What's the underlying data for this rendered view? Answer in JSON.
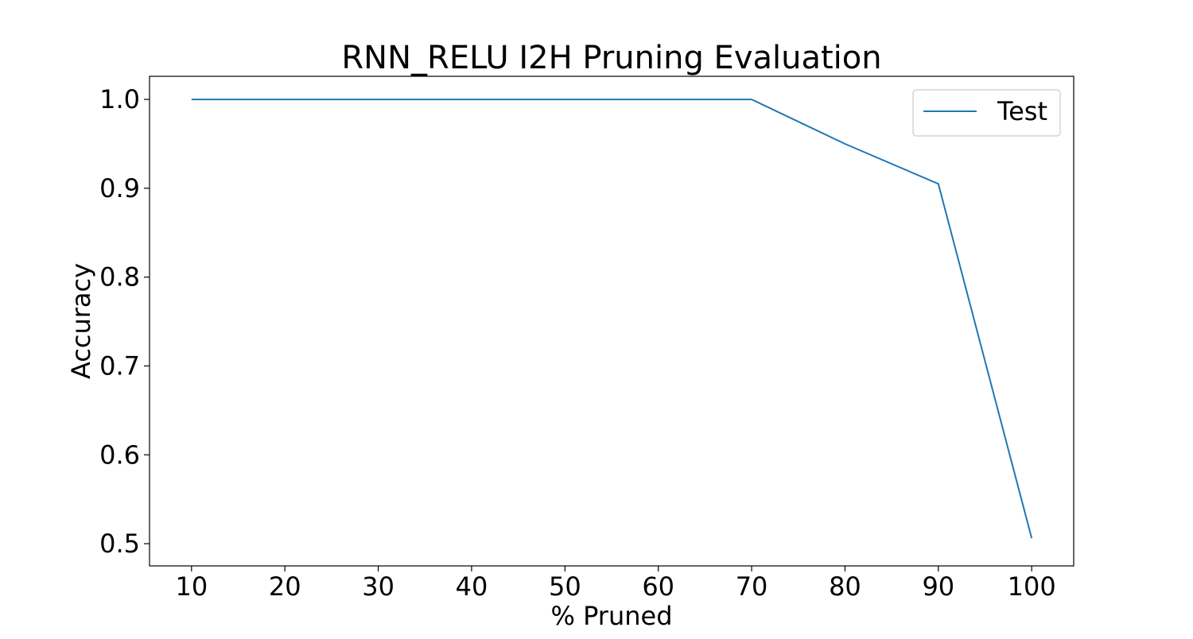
{
  "chart_data": {
    "type": "line",
    "title": "RNN_RELU I2H Pruning Evaluation",
    "xlabel": "% Pruned",
    "ylabel": "Accuracy",
    "xlim": [
      5.5,
      104.5
    ],
    "ylim": [
      0.475,
      1.026
    ],
    "x_ticks": [
      10,
      20,
      30,
      40,
      50,
      60,
      70,
      80,
      90,
      100
    ],
    "y_ticks": [
      0.5,
      0.6,
      0.7,
      0.8,
      0.9,
      1.0
    ],
    "x_tick_labels": [
      "10",
      "20",
      "30",
      "40",
      "50",
      "60",
      "70",
      "80",
      "90",
      "100"
    ],
    "y_tick_labels": [
      "0.5",
      "0.6",
      "0.7",
      "0.8",
      "0.9",
      "1.0"
    ],
    "x": [
      10,
      20,
      30,
      40,
      50,
      60,
      70,
      80,
      90,
      100
    ],
    "series": [
      {
        "name": "Test",
        "color": "#1f77b4",
        "values": [
          1.0,
          1.0,
          1.0,
          1.0,
          1.0,
          1.0,
          1.0,
          0.95,
          0.905,
          0.506
        ]
      }
    ],
    "legend": {
      "position": "top-right"
    },
    "grid": false
  }
}
